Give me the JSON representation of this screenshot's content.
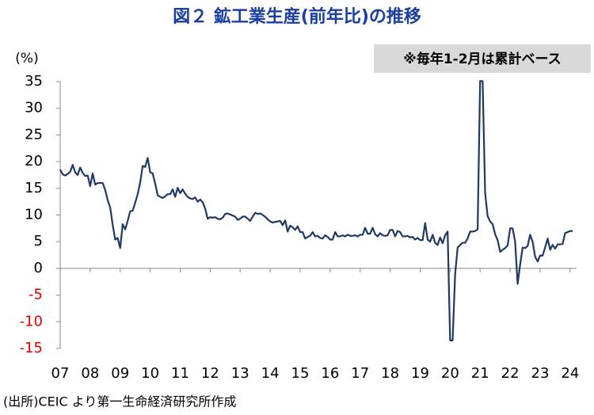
{
  "chart_data": {
    "type": "line",
    "title": "図２ 鉱工業生産(前年比)の推移",
    "note": "※毎年1-2月は累計ベース",
    "y_label": "(%)",
    "source": "(出所)CEIC より第一生命経済研究所作成",
    "color": "#1f3864",
    "negative_tick_color": "#e00000",
    "ylim": [
      -15,
      35
    ],
    "yticks": [
      -15,
      -10,
      -5,
      0,
      5,
      10,
      15,
      20,
      25,
      30,
      35
    ],
    "categories": [
      "07",
      null,
      null,
      null,
      null,
      null,
      null,
      null,
      null,
      null,
      null,
      null,
      "08",
      null,
      null,
      null,
      null,
      null,
      null,
      null,
      null,
      null,
      null,
      null,
      "09",
      null,
      null,
      null,
      null,
      null,
      null,
      null,
      null,
      null,
      null,
      null,
      "10",
      null,
      null,
      null,
      null,
      null,
      null,
      null,
      null,
      null,
      null,
      null,
      "11",
      null,
      null,
      null,
      null,
      null,
      null,
      null,
      null,
      null,
      null,
      null,
      "12",
      null,
      null,
      null,
      null,
      null,
      null,
      null,
      null,
      null,
      null,
      null,
      "13",
      null,
      null,
      null,
      null,
      null,
      null,
      null,
      null,
      null,
      null,
      null,
      "14",
      null,
      null,
      null,
      null,
      null,
      null,
      null,
      null,
      null,
      null,
      null,
      "15",
      null,
      null,
      null,
      null,
      null,
      null,
      null,
      null,
      null,
      null,
      null,
      "16",
      null,
      null,
      null,
      null,
      null,
      null,
      null,
      null,
      null,
      null,
      null,
      "17",
      null,
      null,
      null,
      null,
      null,
      null,
      null,
      null,
      null,
      null,
      null,
      "18",
      null,
      null,
      null,
      null,
      null,
      null,
      null,
      null,
      null,
      null,
      null,
      "19",
      null,
      null,
      null,
      null,
      null,
      null,
      null,
      null,
      null,
      null,
      null,
      "20",
      null,
      null,
      null,
      null,
      null,
      null,
      null,
      null,
      null,
      null,
      null,
      "21",
      null,
      null,
      null,
      null,
      null,
      null,
      null,
      null,
      null,
      null,
      null,
      "22",
      null,
      null,
      null,
      null,
      null,
      null,
      null,
      null,
      null,
      null,
      null,
      "23",
      null,
      null,
      null,
      null,
      null,
      null,
      null,
      null,
      null,
      null,
      null,
      "24",
      null
    ],
    "values": [
      18.5,
      17.6,
      17.4,
      17.7,
      18.1,
      19.4,
      18.0,
      17.5,
      18.9,
      17.9,
      17.3,
      17.4,
      15.4,
      17.8,
      15.7,
      16.0,
      16.0,
      16.0,
      14.7,
      12.8,
      11.4,
      8.2,
      5.4,
      5.7,
      3.8,
      8.3,
      7.3,
      8.9,
      10.7,
      10.8,
      12.3,
      13.9,
      16.1,
      19.2,
      19.0,
      20.7,
      18.0,
      17.8,
      15.9,
      13.7,
      13.4,
      13.2,
      13.5,
      13.9,
      13.9,
      14.8,
      13.4,
      15.1,
      14.1,
      14.8,
      14.0,
      13.4,
      13.1,
      13.0,
      13.3,
      12.5,
      12.9,
      12.4,
      11.2,
      9.3,
      9.6,
      9.5,
      9.6,
      9.3,
      9.2,
      9.5,
      10.2,
      10.3,
      10.1,
      9.9,
      9.7,
      9.1,
      9.3,
      9.7,
      9.7,
      9.3,
      8.9,
      9.7,
      10.4,
      10.2,
      10.3,
      10.0,
      9.7,
      9.2,
      8.8,
      8.6,
      8.7,
      8.8,
      8.9,
      8.1,
      9.0,
      6.9,
      8.0,
      7.7,
      7.2,
      7.9,
      6.8,
      6.8,
      5.6,
      5.9,
      6.1,
      6.8,
      6.0,
      6.1,
      5.7,
      5.6,
      6.2,
      5.9,
      5.4,
      5.4,
      6.8,
      6.0,
      6.0,
      6.2,
      6.0,
      6.3,
      6.1,
      6.1,
      6.2,
      6.0,
      6.3,
      6.3,
      7.6,
      6.5,
      6.5,
      7.6,
      6.4,
      6.0,
      6.6,
      6.2,
      6.1,
      6.2,
      7.2,
      7.2,
      6.0,
      7.0,
      6.8,
      6.0,
      6.0,
      6.1,
      5.8,
      5.9,
      5.4,
      5.7,
      5.3,
      5.3,
      8.5,
      5.4,
      5.0,
      6.3,
      4.8,
      4.4,
      5.8,
      4.7,
      6.2,
      6.9,
      -13.5,
      -13.5,
      -1.1,
      3.9,
      4.4,
      4.8,
      4.8,
      5.6,
      6.9,
      6.9,
      7.0,
      7.3,
      35.1,
      35.1,
      14.1,
      9.8,
      8.8,
      8.3,
      6.4,
      5.3,
      3.1,
      3.5,
      3.8,
      4.3,
      7.5,
      7.5,
      5.0,
      -2.9,
      0.7,
      3.9,
      3.8,
      4.2,
      6.3,
      5.0,
      2.2,
      1.3,
      2.4,
      2.4,
      3.9,
      5.6,
      3.5,
      4.4,
      3.7,
      4.5,
      4.5,
      4.6,
      6.6,
      6.8,
      7.0,
      7.0
    ]
  }
}
